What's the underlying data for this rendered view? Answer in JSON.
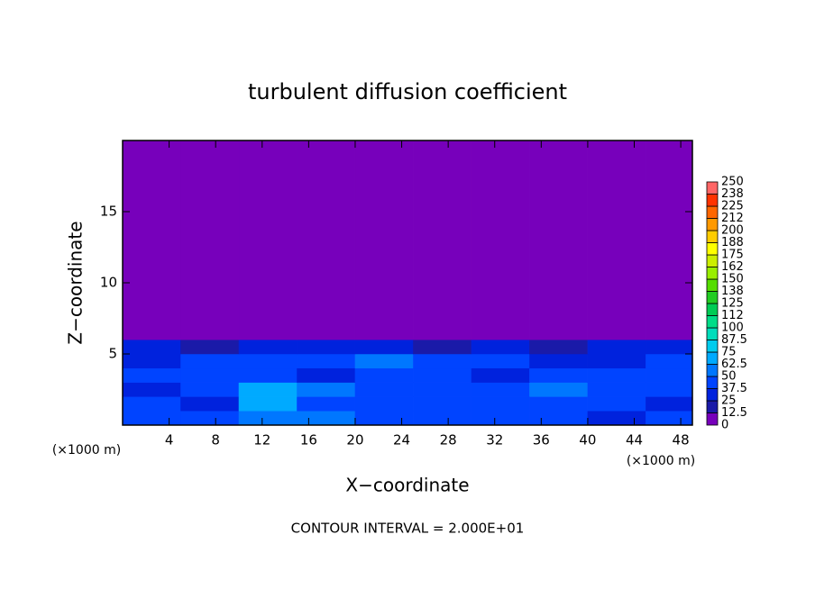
{
  "chart_data": {
    "type": "heatmap",
    "title": "turbulent diffusion coefficient",
    "x_label": "X−coordinate",
    "y_label": "Z−coordinate",
    "x_unit_label": "(×1000 m)",
    "y_unit_label": "(×1000 m)",
    "footer": "CONTOUR INTERVAL = 2.000E+01",
    "xlim": [
      0,
      49
    ],
    "ylim": [
      0,
      20
    ],
    "xticks": [
      4,
      8,
      12,
      16,
      20,
      24,
      28,
      32,
      36,
      40,
      44,
      48
    ],
    "yticks": [
      5,
      10,
      15
    ],
    "xbins": [
      0,
      5,
      10,
      15,
      20,
      25,
      30,
      35,
      40,
      45,
      49
    ],
    "ybins": [
      0,
      1,
      2,
      3,
      4,
      5,
      6,
      20
    ],
    "values": [
      [
        37.5,
        37.5,
        50,
        50,
        37.5,
        37.5,
        37.5,
        37.5,
        25,
        37.5
      ],
      [
        37.5,
        25,
        62.5,
        37.5,
        37.5,
        37.5,
        37.5,
        37.5,
        37.5,
        25
      ],
      [
        25,
        37.5,
        62.5,
        50,
        37.5,
        37.5,
        37.5,
        50,
        37.5,
        37.5
      ],
      [
        37.5,
        37.5,
        37.5,
        25,
        37.5,
        37.5,
        25,
        37.5,
        37.5,
        37.5
      ],
      [
        25,
        37.5,
        37.5,
        37.5,
        50,
        37.5,
        37.5,
        25,
        25,
        37.5
      ],
      [
        25,
        12.5,
        25,
        25,
        25,
        12.5,
        25,
        12.5,
        25,
        25
      ],
      [
        0,
        0,
        0,
        0,
        0,
        0,
        0,
        0,
        0,
        0
      ]
    ],
    "colorbar_ticks": [
      0,
      12.5,
      25,
      37.5,
      50,
      62.5,
      75,
      87.5,
      100,
      112,
      125,
      138,
      150,
      162,
      175,
      188,
      200,
      212,
      225,
      238,
      250
    ],
    "colors": [
      "#7700bb",
      "#1a1aa8",
      "#0022dd",
      "#0044ff",
      "#0077ff",
      "#00aaff",
      "#00ccee",
      "#00ddbb",
      "#00dd88",
      "#00cc55",
      "#22cc22",
      "#55dd00",
      "#99ee00",
      "#ccee00",
      "#ffff00",
      "#ffcc00",
      "#ff9900",
      "#ff6600",
      "#ff3300",
      "#ff6666"
    ]
  }
}
